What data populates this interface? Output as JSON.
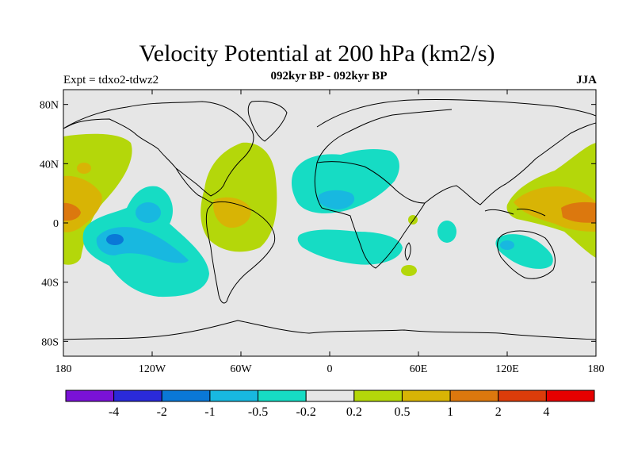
{
  "title": "Velocity Potential at 200 hPa (km2/s)",
  "subtitle_left": "Expt = tdxo2-tdwz2",
  "subtitle_center": "092kyr BP - 092kyr BP",
  "subtitle_right": "JJA",
  "lat_labels": [
    "80N",
    "40N",
    "0",
    "40S",
    "80S"
  ],
  "lon_labels": [
    "180",
    "120W",
    "60W",
    "0",
    "60E",
    "120E",
    "180"
  ],
  "colorbar": {
    "colors": [
      "#7a12d6",
      "#2a2ad9",
      "#0a78d7",
      "#18b8e0",
      "#16dcc4",
      "#e6e6e6",
      "#b4d70a",
      "#d8b405",
      "#dc780e",
      "#dc3c0a",
      "#e60000"
    ],
    "labels": [
      "-4",
      "-2",
      "-1",
      "-0.5",
      "-0.2",
      "0.2",
      "0.5",
      "1",
      "2",
      "4"
    ]
  },
  "colors": {
    "background": "#e6e6e6",
    "positive_weak": "#b4d70a",
    "positive_mid": "#d8b405",
    "positive_strong": "#dc780e",
    "negative_weak": "#16dcc4",
    "negative_mid": "#18b8e0",
    "negative_strong": "#0a78d7",
    "coastline": "#000000"
  }
}
